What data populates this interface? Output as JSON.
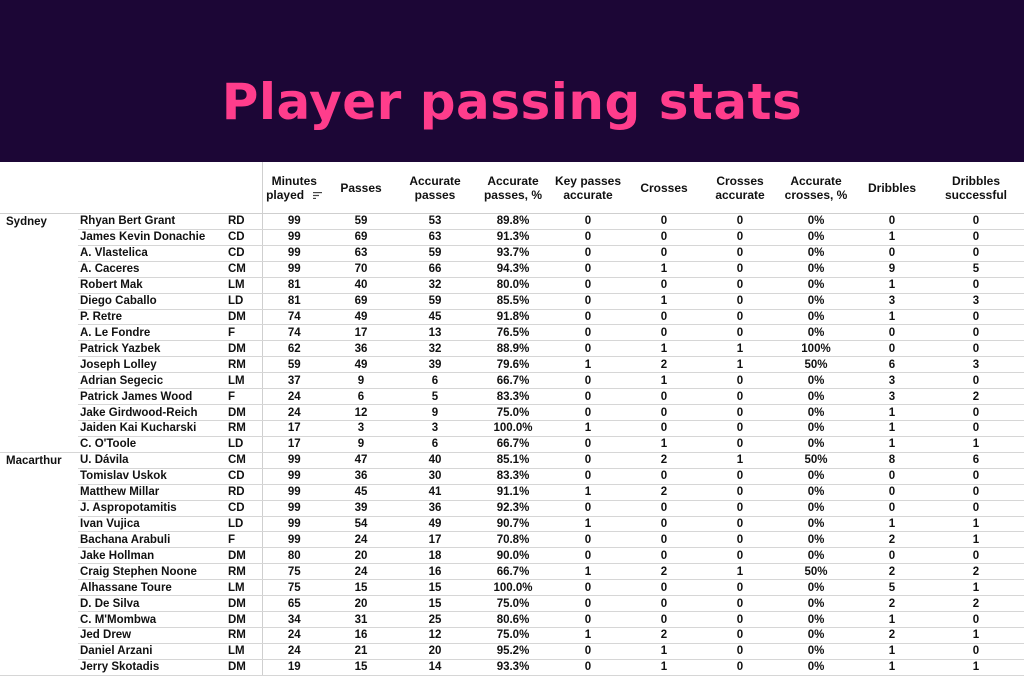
{
  "title": "Player passing stats",
  "header": {
    "minutes_line1": "Minutes",
    "minutes_line2": "played",
    "passes": "Passes",
    "accurate_passes_line1": "Accurate",
    "accurate_passes_line2": "passes",
    "accurate_passes_pct_line1": "Accurate",
    "accurate_passes_pct_line2": "passes, %",
    "key_passes_line1": "Key passes",
    "key_passes_line2": "accurate",
    "crosses": "Crosses",
    "crosses_accurate_line1": "Crosses",
    "crosses_accurate_line2": "accurate",
    "accurate_crosses_pct_line1": "Accurate",
    "accurate_crosses_pct_line2": "crosses, %",
    "dribbles": "Dribbles",
    "dribbles_successful_line1": "Dribbles",
    "dribbles_successful_line2": "successful",
    "sort_icon": "sort-descending-icon"
  },
  "rows": [
    [
      "Sydney",
      "Rhyan Bert Grant",
      "RD",
      "99",
      "59",
      "53",
      "89.8%",
      "0",
      "0",
      "0",
      "0%",
      "0",
      "0"
    ],
    [
      "",
      "James Kevin Donachie",
      "CD",
      "99",
      "69",
      "63",
      "91.3%",
      "0",
      "0",
      "0",
      "0%",
      "1",
      "0"
    ],
    [
      "",
      "A. Vlastelica",
      "CD",
      "99",
      "63",
      "59",
      "93.7%",
      "0",
      "0",
      "0",
      "0%",
      "0",
      "0"
    ],
    [
      "",
      "A. Caceres",
      "CM",
      "99",
      "70",
      "66",
      "94.3%",
      "0",
      "1",
      "0",
      "0%",
      "9",
      "5"
    ],
    [
      "",
      "Robert Mak",
      "LM",
      "81",
      "40",
      "32",
      "80.0%",
      "0",
      "0",
      "0",
      "0%",
      "1",
      "0"
    ],
    [
      "",
      "Diego Caballo",
      "LD",
      "81",
      "69",
      "59",
      "85.5%",
      "0",
      "1",
      "0",
      "0%",
      "3",
      "3"
    ],
    [
      "",
      "P. Retre",
      "DM",
      "74",
      "49",
      "45",
      "91.8%",
      "0",
      "0",
      "0",
      "0%",
      "1",
      "0"
    ],
    [
      "",
      "A. Le Fondre",
      "F",
      "74",
      "17",
      "13",
      "76.5%",
      "0",
      "0",
      "0",
      "0%",
      "0",
      "0"
    ],
    [
      "",
      "Patrick Yazbek",
      "DM",
      "62",
      "36",
      "32",
      "88.9%",
      "0",
      "1",
      "1",
      "100%",
      "0",
      "0"
    ],
    [
      "",
      "Joseph Lolley",
      "RM",
      "59",
      "49",
      "39",
      "79.6%",
      "1",
      "2",
      "1",
      "50%",
      "6",
      "3"
    ],
    [
      "",
      "Adrian Segecic",
      "LM",
      "37",
      "9",
      "6",
      "66.7%",
      "0",
      "1",
      "0",
      "0%",
      "3",
      "0"
    ],
    [
      "",
      "Patrick James Wood",
      "F",
      "24",
      "6",
      "5",
      "83.3%",
      "0",
      "0",
      "0",
      "0%",
      "3",
      "2"
    ],
    [
      "",
      "Jake Girdwood-Reich",
      "DM",
      "24",
      "12",
      "9",
      "75.0%",
      "0",
      "0",
      "0",
      "0%",
      "1",
      "0"
    ],
    [
      "",
      "Jaiden Kai Kucharski",
      "RM",
      "17",
      "3",
      "3",
      "100.0%",
      "1",
      "0",
      "0",
      "0%",
      "1",
      "0"
    ],
    [
      "",
      "C. O'Toole",
      "LD",
      "17",
      "9",
      "6",
      "66.7%",
      "0",
      "1",
      "0",
      "0%",
      "1",
      "1"
    ],
    [
      "Macarthur",
      "U. Dávila",
      "CM",
      "99",
      "47",
      "40",
      "85.1%",
      "0",
      "2",
      "1",
      "50%",
      "8",
      "6"
    ],
    [
      "",
      "Tomislav Uskok",
      "CD",
      "99",
      "36",
      "30",
      "83.3%",
      "0",
      "0",
      "0",
      "0%",
      "0",
      "0"
    ],
    [
      "",
      "Matthew Millar",
      "RD",
      "99",
      "45",
      "41",
      "91.1%",
      "1",
      "2",
      "0",
      "0%",
      "0",
      "0"
    ],
    [
      "",
      "J. Aspropotamitis",
      "CD",
      "99",
      "39",
      "36",
      "92.3%",
      "0",
      "0",
      "0",
      "0%",
      "0",
      "0"
    ],
    [
      "",
      "Ivan Vujica",
      "LD",
      "99",
      "54",
      "49",
      "90.7%",
      "1",
      "0",
      "0",
      "0%",
      "1",
      "1"
    ],
    [
      "",
      "Bachana Arabuli",
      "F",
      "99",
      "24",
      "17",
      "70.8%",
      "0",
      "0",
      "0",
      "0%",
      "2",
      "1"
    ],
    [
      "",
      "Jake Hollman",
      "DM",
      "80",
      "20",
      "18",
      "90.0%",
      "0",
      "0",
      "0",
      "0%",
      "0",
      "0"
    ],
    [
      "",
      "Craig Stephen Noone",
      "RM",
      "75",
      "24",
      "16",
      "66.7%",
      "1",
      "2",
      "1",
      "50%",
      "2",
      "2"
    ],
    [
      "",
      "Alhassane Toure",
      "LM",
      "75",
      "15",
      "15",
      "100.0%",
      "0",
      "0",
      "0",
      "0%",
      "5",
      "1"
    ],
    [
      "",
      "D. De Silva",
      "DM",
      "65",
      "20",
      "15",
      "75.0%",
      "0",
      "0",
      "0",
      "0%",
      "2",
      "2"
    ],
    [
      "",
      "C. M'Mombwa",
      "DM",
      "34",
      "31",
      "25",
      "80.6%",
      "0",
      "0",
      "0",
      "0%",
      "1",
      "0"
    ],
    [
      "",
      "Jed Drew",
      "RM",
      "24",
      "16",
      "12",
      "75.0%",
      "1",
      "2",
      "0",
      "0%",
      "2",
      "1"
    ],
    [
      "",
      "Daniel Arzani",
      "LM",
      "24",
      "21",
      "20",
      "95.2%",
      "0",
      "1",
      "0",
      "0%",
      "1",
      "0"
    ],
    [
      "",
      "Jerry Skotadis",
      "DM",
      "19",
      "15",
      "14",
      "93.3%",
      "0",
      "1",
      "0",
      "0%",
      "1",
      "1"
    ]
  ]
}
